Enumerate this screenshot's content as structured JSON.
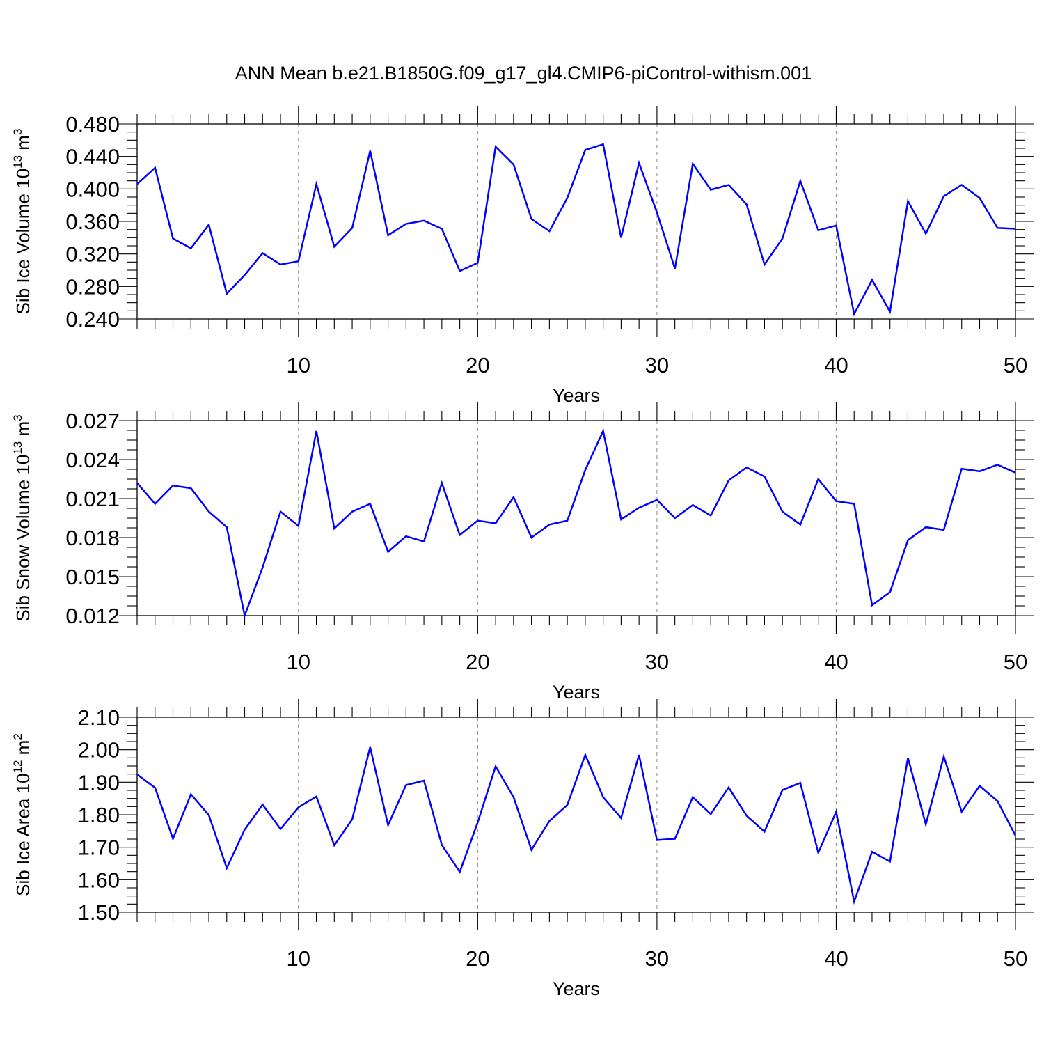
{
  "figure": {
    "title": "ANN Mean b.e21.B1850G.f09_g17_gl4.CMIP6-piControl-withism.001",
    "line_color": "#0000ff"
  },
  "chart_data": [
    {
      "type": "line",
      "xlabel": "Years",
      "ylabel": {
        "prefix": "Sib Ice Volume 10",
        "exp": "13",
        "unit": " m",
        "unit_exp": "3"
      },
      "xlim": [
        1,
        50
      ],
      "ylim": [
        0.24,
        0.48
      ],
      "xticks": [
        10,
        20,
        30,
        40,
        50
      ],
      "yticks": [
        0.24,
        0.28,
        0.32,
        0.36,
        0.4,
        0.44,
        0.48
      ],
      "ytick_labels": [
        "0.240",
        "0.280",
        "0.320",
        "0.360",
        "0.400",
        "0.440",
        "0.480"
      ],
      "grid_x": true,
      "x": [
        1,
        2,
        3,
        4,
        5,
        6,
        7,
        8,
        9,
        10,
        11,
        12,
        13,
        14,
        15,
        16,
        17,
        18,
        19,
        20,
        21,
        22,
        23,
        24,
        25,
        26,
        27,
        28,
        29,
        30,
        31,
        32,
        33,
        34,
        35,
        36,
        37,
        38,
        39,
        40,
        41,
        42,
        43,
        44,
        45,
        46,
        47,
        48,
        49,
        50
      ],
      "values": [
        0.406,
        0.426,
        0.339,
        0.327,
        0.356,
        0.271,
        0.294,
        0.321,
        0.307,
        0.311,
        0.406,
        0.329,
        0.352,
        0.447,
        0.343,
        0.357,
        0.361,
        0.351,
        0.299,
        0.309,
        0.452,
        0.43,
        0.363,
        0.348,
        0.389,
        0.448,
        0.455,
        0.34,
        0.432,
        0.371,
        0.302,
        0.431,
        0.399,
        0.405,
        0.381,
        0.307,
        0.339,
        0.41,
        0.349,
        0.355,
        0.246,
        0.288,
        0.249,
        0.385,
        0.345,
        0.391,
        0.405,
        0.389,
        0.352,
        0.351
      ]
    },
    {
      "type": "line",
      "xlabel": "Years",
      "ylabel": {
        "prefix": "Sib Snow Volume 10",
        "exp": "13",
        "unit": " m",
        "unit_exp": "3"
      },
      "xlim": [
        1,
        50
      ],
      "ylim": [
        0.012,
        0.027
      ],
      "xticks": [
        10,
        20,
        30,
        40,
        50
      ],
      "yticks": [
        0.012,
        0.015,
        0.018,
        0.021,
        0.024,
        0.027
      ],
      "ytick_labels": [
        "0.012",
        "0.015",
        "0.018",
        "0.021",
        "0.024",
        "0.027"
      ],
      "grid_x": true,
      "x": [
        1,
        2,
        3,
        4,
        5,
        6,
        7,
        8,
        9,
        10,
        11,
        12,
        13,
        14,
        15,
        16,
        17,
        18,
        19,
        20,
        21,
        22,
        23,
        24,
        25,
        26,
        27,
        28,
        29,
        30,
        31,
        32,
        33,
        34,
        35,
        36,
        37,
        38,
        39,
        40,
        41,
        42,
        43,
        44,
        45,
        46,
        47,
        48,
        49,
        50
      ],
      "values": [
        0.0222,
        0.0206,
        0.022,
        0.0218,
        0.02,
        0.0188,
        0.012,
        0.0157,
        0.02,
        0.0189,
        0.0262,
        0.0187,
        0.02,
        0.0206,
        0.0169,
        0.0181,
        0.0177,
        0.0222,
        0.0182,
        0.0193,
        0.0191,
        0.0211,
        0.018,
        0.019,
        0.0193,
        0.0232,
        0.0262,
        0.0194,
        0.0203,
        0.0209,
        0.0195,
        0.0205,
        0.0197,
        0.0224,
        0.0234,
        0.0227,
        0.02,
        0.019,
        0.0225,
        0.0208,
        0.0206,
        0.0128,
        0.0138,
        0.0178,
        0.0188,
        0.0186,
        0.0233,
        0.0231,
        0.0236,
        0.023
      ]
    },
    {
      "type": "line",
      "xlabel": "Years",
      "ylabel": {
        "prefix": "Sib Ice Area 10",
        "exp": "12",
        "unit": " m",
        "unit_exp": "2"
      },
      "xlim": [
        1,
        50
      ],
      "ylim": [
        1.5,
        2.1
      ],
      "xticks": [
        10,
        20,
        30,
        40,
        50
      ],
      "yticks": [
        1.5,
        1.6,
        1.7,
        1.8,
        1.9,
        2.0,
        2.1
      ],
      "ytick_labels": [
        "1.50",
        "1.60",
        "1.70",
        "1.80",
        "1.90",
        "2.00",
        "2.10"
      ],
      "grid_x": true,
      "x": [
        1,
        2,
        3,
        4,
        5,
        6,
        7,
        8,
        9,
        10,
        11,
        12,
        13,
        14,
        15,
        16,
        17,
        18,
        19,
        20,
        21,
        22,
        23,
        24,
        25,
        26,
        27,
        28,
        29,
        30,
        31,
        32,
        33,
        34,
        35,
        36,
        37,
        38,
        39,
        40,
        41,
        42,
        43,
        44,
        45,
        46,
        47,
        48,
        49,
        50
      ],
      "values": [
        1.924,
        1.883,
        1.726,
        1.863,
        1.799,
        1.636,
        1.754,
        1.831,
        1.756,
        1.823,
        1.856,
        1.706,
        1.786,
        2.008,
        1.768,
        1.891,
        1.905,
        1.707,
        1.624,
        1.776,
        1.949,
        1.854,
        1.692,
        1.781,
        1.83,
        1.984,
        1.854,
        1.79,
        1.984,
        1.722,
        1.726,
        1.854,
        1.802,
        1.884,
        1.797,
        1.748,
        1.876,
        1.898,
        1.683,
        1.809,
        1.533,
        1.686,
        1.656,
        1.975,
        1.77,
        1.979,
        1.809,
        1.889,
        1.842,
        1.736
      ]
    }
  ]
}
